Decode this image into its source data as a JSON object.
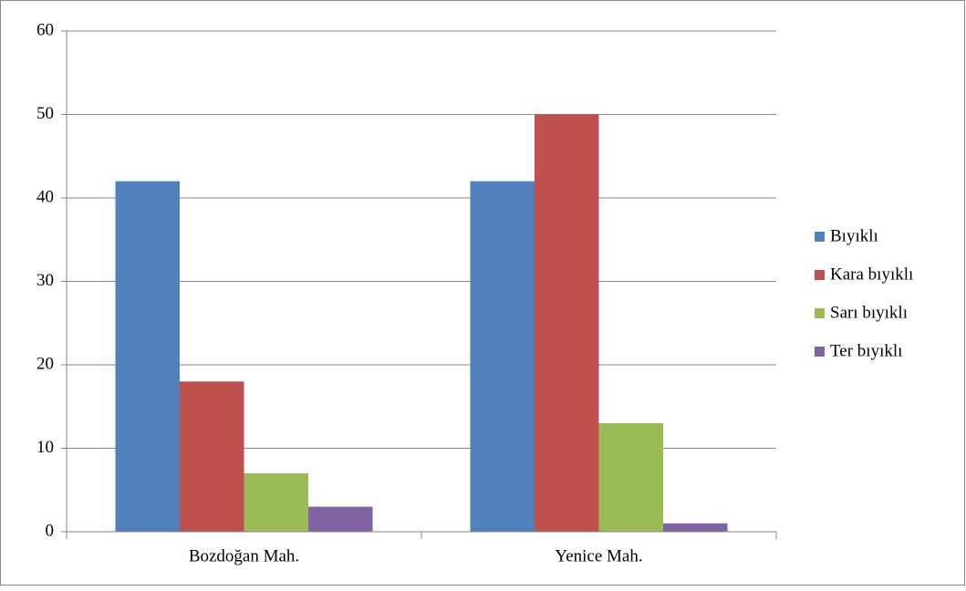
{
  "chart_data": {
    "type": "bar",
    "categories": [
      "Bozdoğan Mah.",
      "Yenice Mah."
    ],
    "series": [
      {
        "name": "Bıyıklı",
        "color": "#4f81bd",
        "values": [
          42,
          42
        ]
      },
      {
        "name": "Kara bıyıklı",
        "color": "#c0504d",
        "values": [
          18,
          50
        ]
      },
      {
        "name": "Sarı bıyıklı",
        "color": "#9bbb59",
        "values": [
          7,
          13
        ]
      },
      {
        "name": "Ter bıyıklı",
        "color": "#8064a2",
        "values": [
          3,
          1
        ]
      }
    ],
    "ylim": [
      0,
      60
    ],
    "yticks": [
      0,
      10,
      20,
      30,
      40,
      50,
      60
    ],
    "grid": true,
    "legend": "right"
  }
}
